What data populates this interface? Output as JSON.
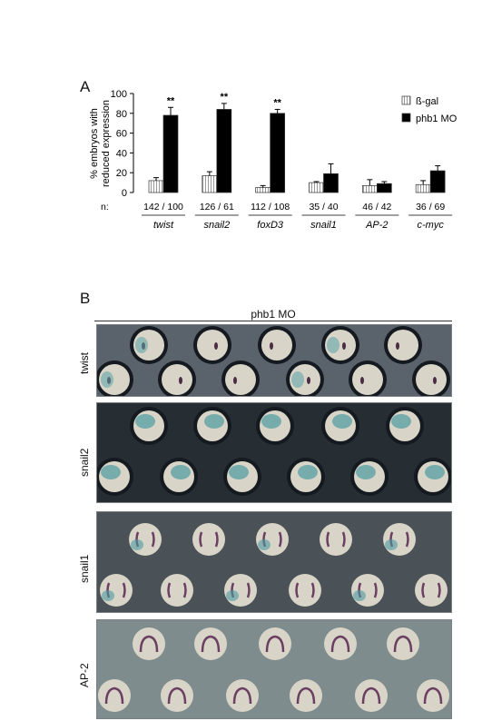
{
  "panel_a": {
    "letter": "A"
  },
  "panel_b": {
    "letter": "B",
    "header": "phb1 MO"
  },
  "chart_data": {
    "type": "bar",
    "title": "",
    "xlabel": "",
    "ylabel": "% embryos with reduced expression",
    "ylabel_lines": [
      "% embryos with",
      "reduced expression"
    ],
    "ylim": [
      0,
      100
    ],
    "yticks": [
      0,
      20,
      40,
      60,
      80,
      100
    ],
    "grid": false,
    "legend_position": "top-right",
    "categories": [
      "twist",
      "snail2",
      "foxD3",
      "snail1",
      "AP-2",
      "c-myc"
    ],
    "n_label": "n:",
    "n_values": [
      "142 / 100",
      "126 / 61",
      "112 / 108",
      "35 / 40",
      "46 / 42",
      "36 / 69"
    ],
    "series": [
      {
        "name": "ß-gal",
        "values": [
          12,
          17,
          5,
          10,
          7,
          8
        ],
        "errors": [
          3,
          4,
          2,
          1,
          6,
          4
        ],
        "fill": "#ffffff",
        "pattern": "vertical-stripes"
      },
      {
        "name": "phb1 MO",
        "values": [
          78,
          84,
          80,
          19,
          9,
          22
        ],
        "errors": [
          8,
          6,
          4,
          10,
          2,
          5
        ],
        "fill": "#000000"
      }
    ],
    "significance": [
      "**",
      "**",
      "**",
      "",
      "",
      ""
    ]
  },
  "photo_panels": [
    {
      "label": "twist",
      "stain": "dark-purple-spot",
      "bg": "#5a636b"
    },
    {
      "label": "snail2",
      "stain": "blue-green-cap",
      "bg": "#262e34"
    },
    {
      "label": "snail1",
      "stain": "purple-stripes",
      "bg": "#4a5157"
    },
    {
      "label": "AP-2",
      "stain": "purple-horseshoe",
      "bg": "#7f8c8e"
    }
  ]
}
